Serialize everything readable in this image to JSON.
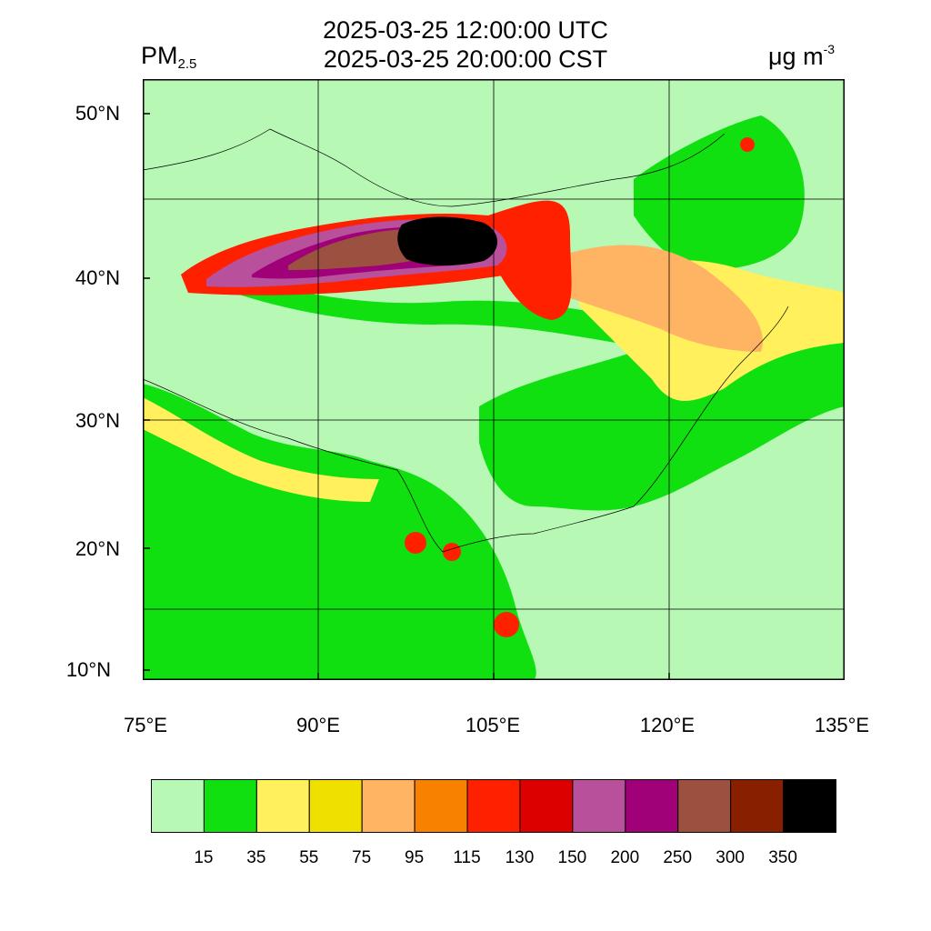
{
  "title": {
    "line1": "2025-03-25 12:00:00 UTC",
    "line2": "2025-03-25 20:00:00 CST"
  },
  "variable": {
    "name": "PM",
    "subscript": "2.5"
  },
  "unit": {
    "base": "μg m",
    "exponent": "-3"
  },
  "axes": {
    "lat_ticks": [
      "50°N",
      "40°N",
      "30°N",
      "20°N",
      "10°N"
    ],
    "lon_ticks": [
      "75°E",
      "90°E",
      "105°E",
      "120°E",
      "135°E"
    ]
  },
  "colorbar": {
    "colors": [
      "#b6f8b4",
      "#10e010",
      "#fff05c",
      "#f0e000",
      "#ffb464",
      "#f88200",
      "#ff2000",
      "#dc0000",
      "#b8509c",
      "#a00078",
      "#9c5040",
      "#882000",
      "#000000"
    ],
    "labels": [
      "15",
      "35",
      "55",
      "75",
      "95",
      "115",
      "130",
      "150",
      "200",
      "250",
      "300",
      "350"
    ]
  }
}
